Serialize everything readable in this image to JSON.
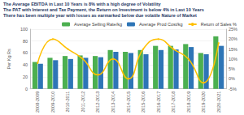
{
  "chart_data": {
    "type": "bar",
    "annotations": [
      "The Average EBITDA in Last 10 Years is 8% with a high degree of Volatility",
      "The PAT with Interest and Tax Payment, the Return on Investment is below 4% in Last 10 Years",
      "There has been multiple year with losses as earmarked below due volatile Nature of Market"
    ],
    "y_label": "Per Kg Rs",
    "categories": [
      "2008-2009",
      "2009-2010",
      "2010-2011",
      "2011-2012",
      "2012-2013",
      "2013-2014",
      "2014-2015",
      "2015-2016",
      "2016-2017",
      "2017-2018",
      "2018-2019",
      "2019-2020",
      "2020-2021"
    ],
    "series": [
      {
        "name": "Average Selling Rate/kg",
        "color": "#4caf50",
        "values": [
          45,
          52,
          55,
          56,
          55,
          65,
          62,
          65,
          72,
          72,
          75,
          60,
          88
        ]
      },
      {
        "name": "Average Prod Cost/kg",
        "color": "#2e75b6",
        "values": [
          42,
          48,
          50,
          52,
          53,
          62,
          60,
          58,
          65,
          66,
          70,
          58,
          72
        ]
      },
      {
        "name": "Return of Sales %",
        "color": "#ffc000",
        "type": "line",
        "axis": "y2",
        "marker": "circle",
        "line_style": "solid",
        "values": [
          8,
          20,
          15,
          10,
          2,
          10,
          0,
          15,
          20,
          15,
          10,
          -2,
          18
        ]
      }
    ],
    "ylim": [
      0,
      100
    ],
    "yticks": [
      0,
      20,
      40,
      60,
      80,
      100
    ],
    "y2lim": [
      -5,
      25
    ],
    "y2ticks": [
      {
        "value": -5,
        "label": "-5%"
      },
      {
        "value": 0,
        "label": "0%"
      },
      {
        "value": 5,
        "label": "5%"
      },
      {
        "value": 10,
        "label": "10%"
      },
      {
        "value": 15,
        "label": "15%"
      },
      {
        "value": 20,
        "label": "20%"
      },
      {
        "value": 25,
        "label": "25%"
      }
    ],
    "grid": true,
    "legend": "top"
  }
}
